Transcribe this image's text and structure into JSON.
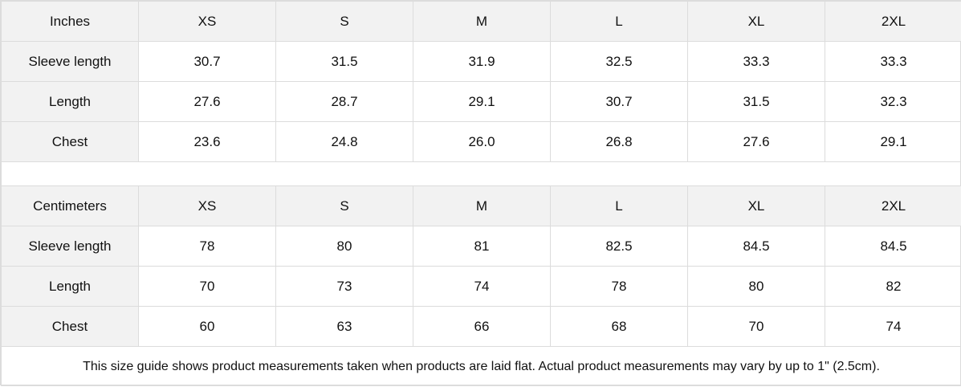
{
  "inches": {
    "header": [
      "Inches",
      "XS",
      "S",
      "M",
      "L",
      "XL",
      "2XL"
    ],
    "rows": [
      [
        "Sleeve length",
        "30.7",
        "31.5",
        "31.9",
        "32.5",
        "33.3",
        "33.3"
      ],
      [
        "Length",
        "27.6",
        "28.7",
        "29.1",
        "30.7",
        "31.5",
        "32.3"
      ],
      [
        "Chest",
        "23.6",
        "24.8",
        "26.0",
        "26.8",
        "27.6",
        "29.1"
      ]
    ]
  },
  "centimeters": {
    "header": [
      "Centimeters",
      "XS",
      "S",
      "M",
      "L",
      "XL",
      "2XL"
    ],
    "rows": [
      [
        "Sleeve length",
        "78",
        "80",
        "81",
        "82.5",
        "84.5",
        "84.5"
      ],
      [
        "Length",
        "70",
        "73",
        "74",
        "78",
        "80",
        "82"
      ],
      [
        "Chest",
        "60",
        "63",
        "66",
        "68",
        "70",
        "74"
      ]
    ]
  },
  "footer": "This size guide shows product measurements taken when products are laid flat.  Actual product measurements may vary by up to 1\" (2.5cm).",
  "colors": {
    "header_bg": "#f2f2f2",
    "border": "#dcdcdc"
  }
}
